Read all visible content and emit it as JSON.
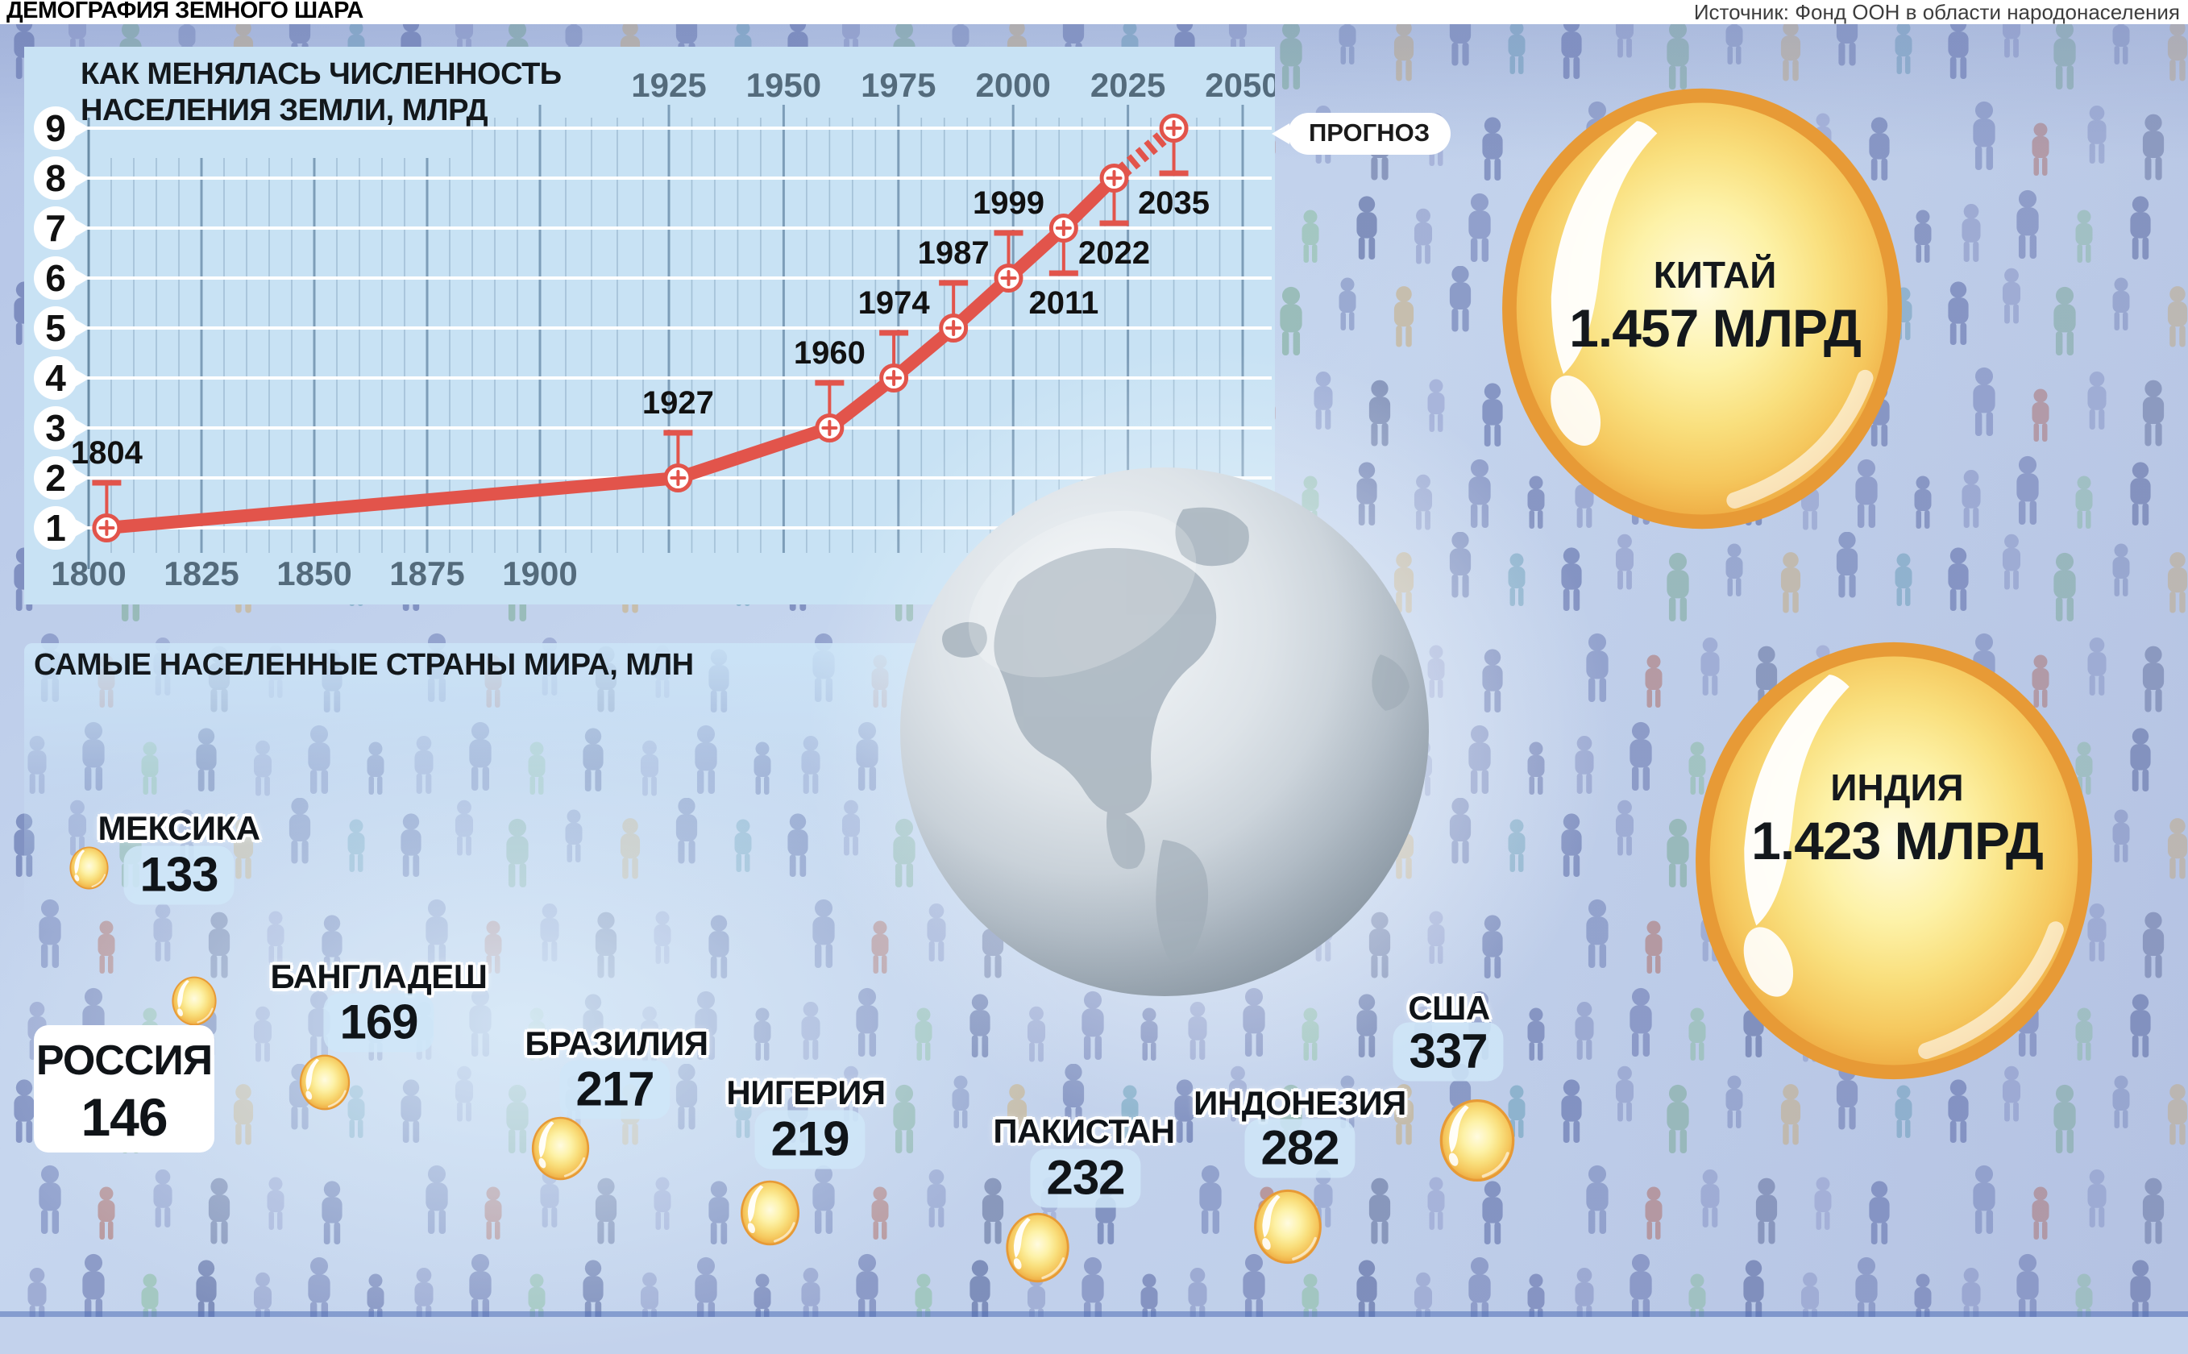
{
  "header": {
    "title": "ДЕМОГРАФИЯ ЗЕМНОГО ШАРА",
    "source": "Источник: Фонд ООН в области народонаселения"
  },
  "chart": {
    "title_line1": "КАК МЕНЯЛАСЬ ЧИСЛЕННОСТЬ",
    "title_line2": "НАСЕЛЕНИЯ ЗЕМЛИ, МЛРД",
    "forecast_label": "ПРОГНОЗ"
  },
  "chart_data": {
    "type": "line",
    "title": "КАК МЕНЯЛАСЬ ЧИСЛЕННОСТЬ НАСЕЛЕНИЯ ЗЕМЛИ, МЛРД",
    "x_ticks_bottom": [
      1800,
      1825,
      1850,
      1875,
      1900
    ],
    "x_ticks_top": [
      1925,
      1950,
      1975,
      2000,
      2025,
      2050
    ],
    "y_ticks": [
      1,
      2,
      3,
      4,
      5,
      6,
      7,
      8,
      9
    ],
    "xlim": [
      1800,
      2050
    ],
    "ylim": [
      1,
      9
    ],
    "grid": true,
    "legend_position": "none",
    "forecast_start_year": 2022,
    "forecast_label": "ПРОГНОЗ",
    "series": [
      {
        "name": "Численность населения Земли, млрд",
        "points": [
          {
            "year": 1804,
            "value": 1,
            "label_side": "above"
          },
          {
            "year": 1927,
            "value": 2,
            "label_side": "above"
          },
          {
            "year": 1960,
            "value": 3,
            "label_side": "above"
          },
          {
            "year": 1974,
            "value": 4,
            "label_side": "above"
          },
          {
            "year": 1987,
            "value": 5,
            "label_side": "above"
          },
          {
            "year": 1999,
            "value": 6,
            "label_side": "above"
          },
          {
            "year": 2011,
            "value": 7,
            "label_side": "below"
          },
          {
            "year": 2022,
            "value": 8,
            "label_side": "below"
          },
          {
            "year": 2035,
            "value": 9,
            "label_side": "below",
            "forecast": true
          }
        ]
      }
    ]
  },
  "countries": {
    "section_label": "САМЫЕ НАСЕЛЕННЫЕ СТРАНЫ МИРА, МЛН",
    "major": [
      {
        "name": "КИТАЙ",
        "value": "1.457 МЛРД"
      },
      {
        "name": "ИНДИЯ",
        "value": "1.423 МЛРД"
      }
    ],
    "list": [
      {
        "name": "МЕКСИКА",
        "value": "133"
      },
      {
        "name": "РОССИЯ",
        "value": "146",
        "highlighted": true
      },
      {
        "name": "БАНГЛАДЕШ",
        "value": "169"
      },
      {
        "name": "БРАЗИЛИЯ",
        "value": "217"
      },
      {
        "name": "НИГЕРИЯ",
        "value": "219"
      },
      {
        "name": "ПАКИСТАН",
        "value": "232"
      },
      {
        "name": "ИНДОНЕЗИЯ",
        "value": "282"
      },
      {
        "name": "США",
        "value": "337"
      }
    ]
  },
  "colors": {
    "accent_red": "#e2544b",
    "panel_blue": "#c8e2f4",
    "grid_minor": "#a3c0d6",
    "grid_major": "#7d9db8",
    "axis_label": "#546b7c",
    "gold_rim": "#e79a36",
    "gold_body": "#f9df7d",
    "badge_blue": "#cfe6f8",
    "globe_silver": "#bcc6cf"
  }
}
